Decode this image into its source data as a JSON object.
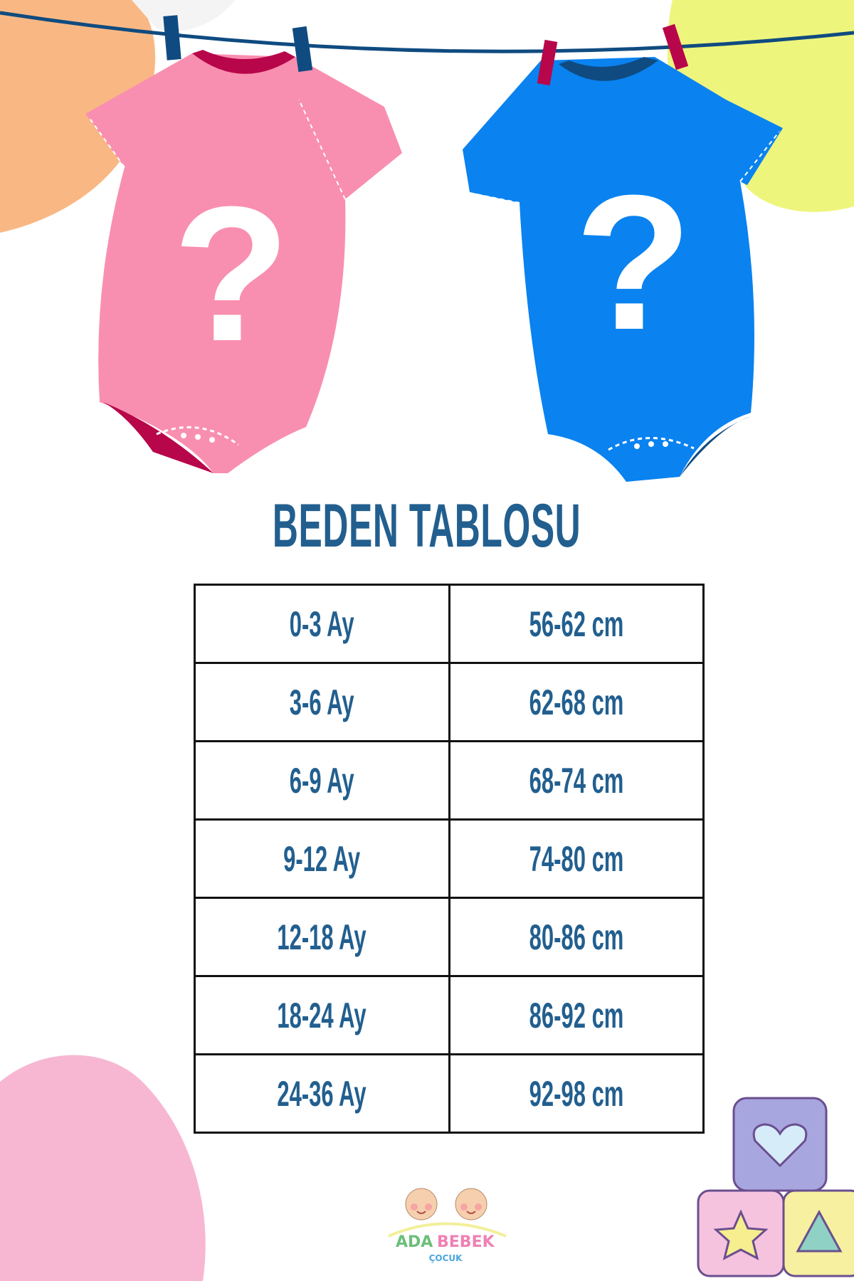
{
  "title": "BEDEN TABLOSU",
  "size_table": {
    "rows": [
      {
        "age": "0-3 Ay",
        "height": "56-62 cm"
      },
      {
        "age": "3-6 Ay",
        "height": "62-68 cm"
      },
      {
        "age": "6-9 Ay",
        "height": "68-74 cm"
      },
      {
        "age": "9-12 Ay",
        "height": "74-80 cm"
      },
      {
        "age": "12-18 Ay",
        "height": "80-86 cm"
      },
      {
        "age": "18-24 Ay",
        "height": "86-92 cm"
      },
      {
        "age": "24-36 Ay",
        "height": "92-98 cm"
      }
    ]
  },
  "logo": {
    "line1a": "ADA",
    "line1b": "BEBEK",
    "line2": "ÇOCUK"
  },
  "colors": {
    "text": "#225f8f",
    "pink": "#f98fb0",
    "blue": "#0a82f0",
    "orange": "#f9b883",
    "yellow": "#eef57c",
    "pink_blob": "#f7b7d2"
  }
}
